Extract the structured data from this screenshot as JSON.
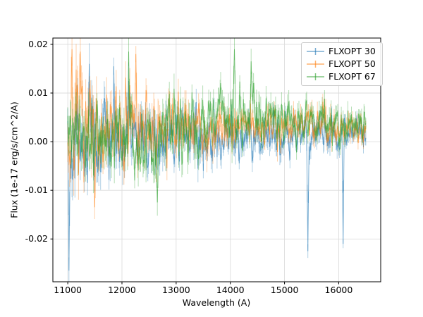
{
  "figure": {
    "background": "#ffffff",
    "axes_edge_color": "#000000",
    "grid_color": "#d9d9d9"
  },
  "chart_data": {
    "type": "line",
    "subtype": "errorbar-spectra",
    "title": "",
    "xlabel": "Wavelength (A)",
    "ylabel": "Flux (1e-17 erg/s/cm^2/A)",
    "xlim": [
      10725,
      16775
    ],
    "ylim": [
      -0.0288,
      0.0213
    ],
    "x_range_data": [
      11000,
      16500
    ],
    "points_per_series": 500,
    "grid": true,
    "legend_position": "upper right",
    "xticks": [
      {
        "value": 11000,
        "label": "11000"
      },
      {
        "value": 12000,
        "label": "12000"
      },
      {
        "value": 13000,
        "label": "13000"
      },
      {
        "value": 14000,
        "label": "14000"
      },
      {
        "value": 15000,
        "label": "15000"
      },
      {
        "value": 16000,
        "label": "16000"
      }
    ],
    "yticks": [
      {
        "value": -0.02,
        "label": "-0.02"
      },
      {
        "value": -0.01,
        "label": "-0.01"
      },
      {
        "value": 0.0,
        "label": "0.00"
      },
      {
        "value": 0.01,
        "label": "0.01"
      },
      {
        "value": 0.02,
        "label": "0.02"
      }
    ],
    "series": [
      {
        "name": "FLXOPT 30",
        "color": "#1f77b4",
        "alpha": 0.5,
        "seed": 42,
        "profile": [
          {
            "x": 11000,
            "base": -0.0005,
            "amp": 0.0075
          },
          {
            "x": 12500,
            "base": 0.0005,
            "amp": 0.005
          },
          {
            "x": 14000,
            "base": 0.001,
            "amp": 0.0035
          },
          {
            "x": 16500,
            "base": 0.002,
            "amp": 0.0022
          }
        ],
        "spikes": [
          {
            "x": 11020,
            "y": -0.0265
          },
          {
            "x": 11400,
            "y": 0.016
          },
          {
            "x": 11850,
            "y": 0.0155
          },
          {
            "x": 15430,
            "y": -0.0225
          },
          {
            "x": 16080,
            "y": -0.021
          }
        ]
      },
      {
        "name": "FLXOPT 50",
        "color": "#ff7f0e",
        "alpha": 0.5,
        "seed": 7,
        "profile": [
          {
            "x": 11000,
            "base": 0.002,
            "amp": 0.008
          },
          {
            "x": 12500,
            "base": 0.002,
            "amp": 0.005
          },
          {
            "x": 14500,
            "base": 0.004,
            "amp": 0.003
          },
          {
            "x": 16500,
            "base": 0.003,
            "amp": 0.0026
          }
        ],
        "spikes": [
          {
            "x": 11080,
            "y": 0.019
          },
          {
            "x": 11230,
            "y": 0.0185
          },
          {
            "x": 12260,
            "y": 0.018
          },
          {
            "x": 11500,
            "y": -0.0135
          }
        ]
      },
      {
        "name": "FLXOPT 67",
        "color": "#2ca02c",
        "alpha": 0.5,
        "seed": 1234,
        "profile": [
          {
            "x": 11000,
            "base": 0.001,
            "amp": 0.006
          },
          {
            "x": 12500,
            "base": 0.001,
            "amp": 0.005
          },
          {
            "x": 14100,
            "base": 0.005,
            "amp": 0.0042
          },
          {
            "x": 16500,
            "base": 0.003,
            "amp": 0.0026
          }
        ],
        "spikes": [
          {
            "x": 12120,
            "y": 0.0185
          },
          {
            "x": 14080,
            "y": 0.019
          },
          {
            "x": 14380,
            "y": 0.0165
          },
          {
            "x": 12650,
            "y": -0.0125
          }
        ]
      }
    ]
  }
}
